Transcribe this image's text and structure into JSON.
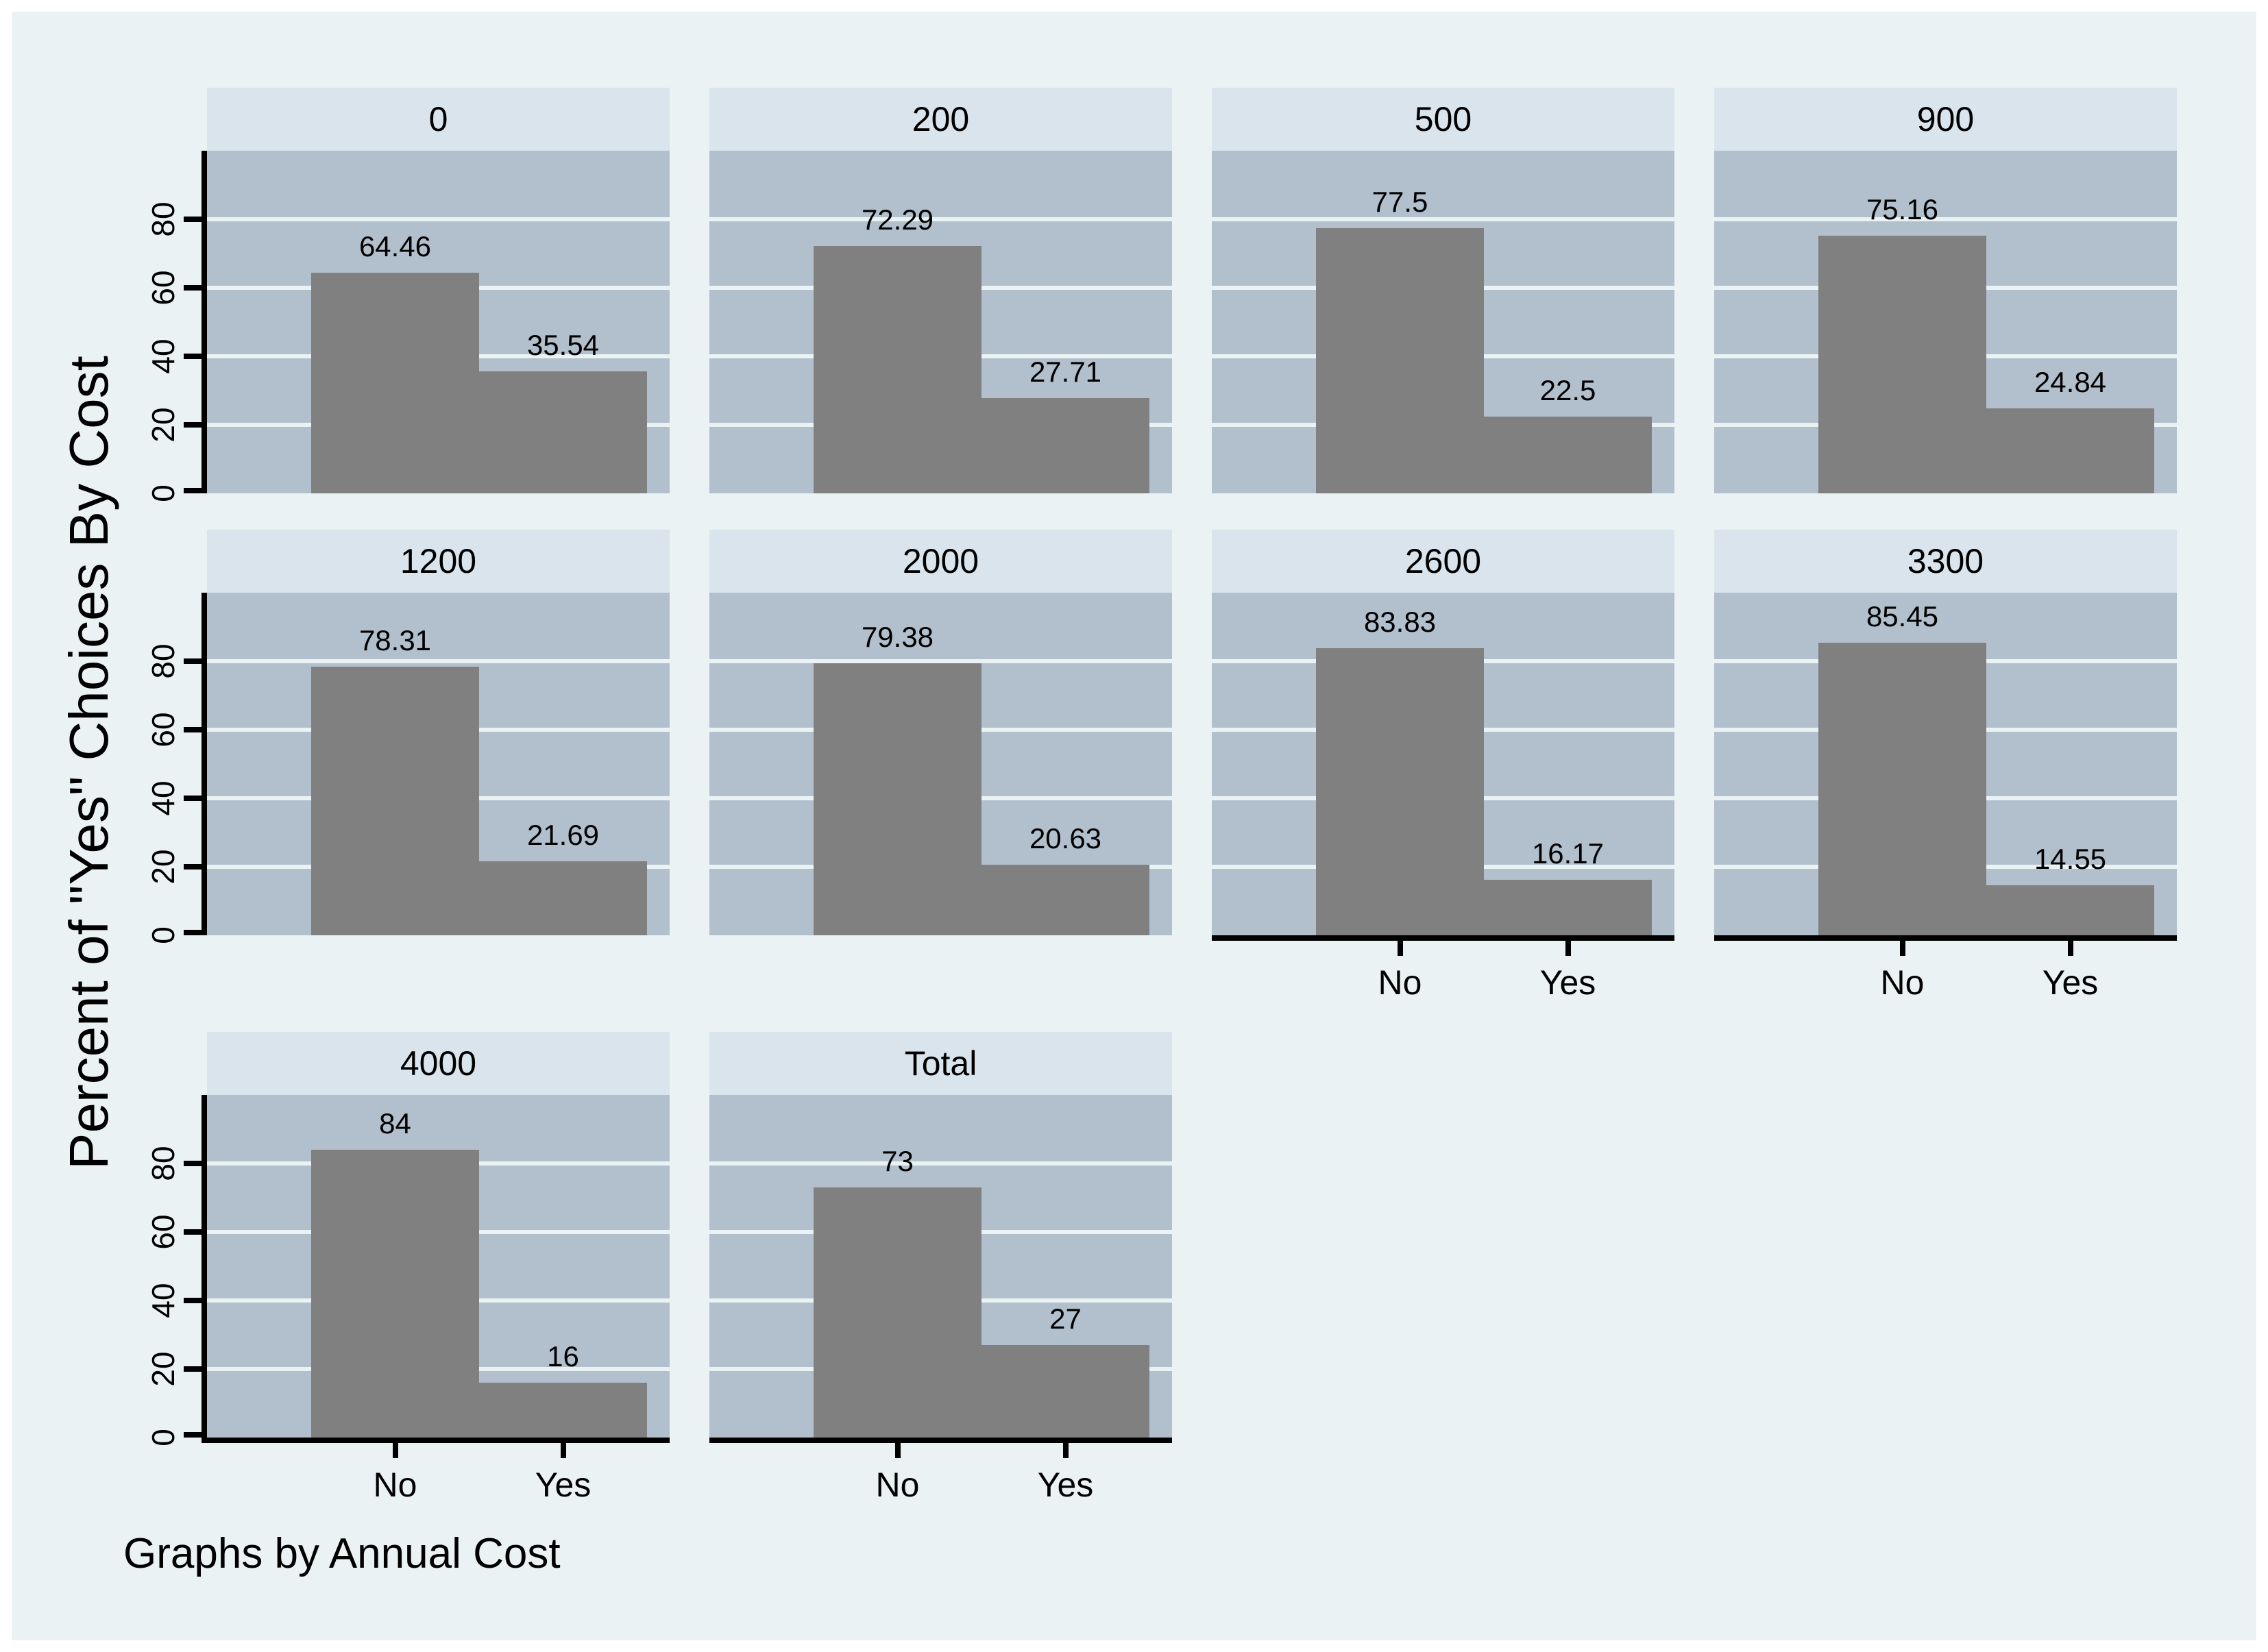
{
  "window": {
    "background": "#ffffff",
    "canvas_background": "#eaf2f3"
  },
  "footer": {
    "note": "Graphs by Annual Cost"
  },
  "axis": {
    "y_title": "Percent of \"Yes\" Choices By Cost",
    "y_tick_labels": [
      "0",
      "20",
      "40",
      "60",
      "80"
    ]
  },
  "chart_data": {
    "type": "bar",
    "title": "",
    "facet_by": "Annual Cost",
    "categories": [
      "No",
      "Yes"
    ],
    "y_title": "Percent of \"Yes\" Choices By Cost",
    "ylabel": "Percent",
    "xlabel": "",
    "ylim": [
      0,
      100
    ],
    "y_ticks": [
      0,
      20,
      40,
      60,
      80
    ],
    "grid": true,
    "legend": "none",
    "note": "Graphs by Annual Cost",
    "panels": [
      {
        "title": "0",
        "values": [
          64.46,
          35.54
        ],
        "labels": [
          "64.46",
          "35.54"
        ]
      },
      {
        "title": "200",
        "values": [
          72.29,
          27.71
        ],
        "labels": [
          "72.29",
          "27.71"
        ]
      },
      {
        "title": "500",
        "values": [
          77.5,
          22.5
        ],
        "labels": [
          "77.5",
          "22.5"
        ]
      },
      {
        "title": "900",
        "values": [
          75.16,
          24.84
        ],
        "labels": [
          "75.16",
          "24.84"
        ]
      },
      {
        "title": "1200",
        "values": [
          78.31,
          21.69
        ],
        "labels": [
          "78.31",
          "21.69"
        ]
      },
      {
        "title": "2000",
        "values": [
          79.38,
          20.63
        ],
        "labels": [
          "79.38",
          "20.63"
        ]
      },
      {
        "title": "2600",
        "values": [
          83.83,
          16.17
        ],
        "labels": [
          "83.83",
          "16.17"
        ]
      },
      {
        "title": "3300",
        "values": [
          85.45,
          14.55
        ],
        "labels": [
          "85.45",
          "14.55"
        ]
      },
      {
        "title": "4000",
        "values": [
          84,
          16
        ],
        "labels": [
          "84",
          "16"
        ]
      },
      {
        "title": "Total",
        "values": [
          73,
          27
        ],
        "labels": [
          "73",
          "27"
        ]
      }
    ],
    "colors": {
      "bar": "#808080",
      "plot_background": "#b2bfcd",
      "strip_background": "#d9e4ec",
      "canvas_background": "#eaf2f3",
      "grid_line": "#eaf2f3",
      "axis_line": "#000000",
      "text": "#000000"
    }
  }
}
